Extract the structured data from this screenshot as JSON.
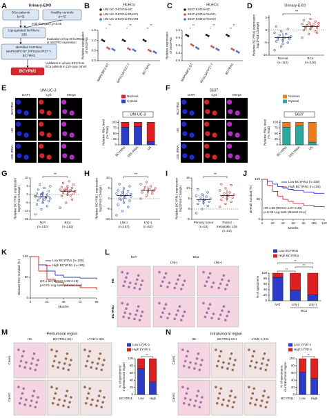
{
  "figure": {
    "A": {
      "letter": "A",
      "title": "Urinary-EXO",
      "boxes": [
        [
          "BCa patients",
          "(n=5)"
        ],
        [
          "Healthy controls",
          "(n=5)"
        ],
        [
          "Upregulated lncRNAs:",
          "255"
        ],
        [
          "Identified lncRNAs:",
          "MAPK8IP2-DT, RPS15A7P27-7,",
          "BCYRN1"
        ],
        [
          "BCYRN1"
        ]
      ],
      "notes": [
        [
          "Fold change≥2, p<0.05"
        ],
        [
          "Evaluation of top 20 lncRNAs",
          "in VEGFR3 expression"
        ],
        [
          "Validation in urinary-EXO from",
          "BCa patients in 210-case cohort"
        ]
      ]
    },
    "E_images": {
      "title": "UM-UC-3",
      "columns": [
        "DAPI",
        "Cy3",
        "Merge"
      ],
      "rows": [
        "BCYRN1",
        "U6",
        "18S rRNA"
      ]
    },
    "F_images": {
      "title": "5637",
      "columns": [
        "DAPI",
        "Cy3",
        "Merge"
      ],
      "rows": [
        "BCYRN1",
        "U6",
        "18S rRNA"
      ]
    },
    "L_images": {
      "columns": [
        "NAT",
        "BCa"
      ],
      "subcolumns": [
        "LN(-)",
        "LN(+)"
      ],
      "rows": [
        "HE",
        "BCYRN1"
      ]
    },
    "M_images": {
      "title": "Peritumoral region",
      "columns": [
        "HE",
        "BCYRN1-ISH",
        "LYVE-1-IHC"
      ],
      "rows": [
        "Case1",
        "Case2"
      ]
    },
    "N_images": {
      "title": "Intratumoral region",
      "columns": [
        "HE",
        "BCYRN1-ISH",
        "LYVE-1-IHC"
      ],
      "rows": [
        "Case1",
        "Case2"
      ]
    }
  },
  "chart_data": [
    {
      "letter": "B",
      "type": "dot-plot",
      "title": "HLECs",
      "y_label": [
        "Relative expression",
        "of VEGFR3"
      ],
      "categories": [
        "MAPK8IP2-DT",
        "RPS15A7P27-7",
        "BCYRN1"
      ],
      "series": [
        {
          "name": "UM-UC-3-EXOsi-NC",
          "color": "#222222",
          "values": [
            1.0,
            1.0,
            1.0
          ]
        },
        {
          "name": "UM-UC-3-EXOsi-RNA#1",
          "color": "#d9534f",
          "values": [
            0.62,
            0.58,
            0.5
          ]
        },
        {
          "name": "UM-UC-3-EXOsi-RNA#2",
          "color": "#4a6fd0",
          "values": [
            0.55,
            0.52,
            0.42
          ]
        }
      ],
      "ylim": [
        0,
        1.5
      ],
      "yticks": [
        {
          "value": 0,
          "label": "0.0"
        },
        0.5,
        {
          "value": 1,
          "label": "1.0"
        },
        1.5
      ],
      "annotations": [
        "*",
        "**",
        "*",
        "**",
        "**",
        "**"
      ]
    },
    {
      "letter": "C",
      "type": "dot-plot",
      "title": "HLECs",
      "y_label": [
        "Relative expression",
        "of VEGFR3"
      ],
      "categories": [
        "MAPK8IP2-DT",
        "RPS15A7P27-7",
        "BCYRN1"
      ],
      "series": [
        {
          "name": "5637-EXOsi-NC",
          "color": "#222222",
          "values": [
            1.0,
            1.0,
            1.0
          ]
        },
        {
          "name": "5637-EXOsi-RNA#1",
          "color": "#d9534f",
          "values": [
            0.62,
            0.55,
            0.45
          ]
        },
        {
          "name": "5637-EXOsi-RNA#2",
          "color": "#4a6fd0",
          "values": [
            0.5,
            0.45,
            0.35
          ]
        }
      ],
      "ylim": [
        0,
        1.2
      ],
      "yticks": [
        {
          "value": 0,
          "label": "0.0"
        },
        0.3,
        0.6,
        0.9,
        1.2
      ],
      "annotations": [
        "*",
        "**",
        "*",
        "**",
        "**",
        "**"
      ]
    },
    {
      "letter": "D",
      "type": "strip",
      "title": "Urinary-EXO",
      "y_label": [
        "Relative BCYRN1 expression",
        "log2(Fold Change)"
      ],
      "categories": [
        [
          "Normal"
        ],
        [
          "BCa"
        ]
      ],
      "counts": [
        "(n=112)",
        "(n=210)"
      ],
      "groups": [
        {
          "color": "#3b5bc4",
          "points": [
            -8,
            -6.5,
            -5,
            -4.5,
            -4,
            -3.5,
            -3,
            -3,
            -2.5,
            -2,
            -1.5,
            -1,
            -0.5,
            0.5,
            1.5,
            -5.5,
            -2.8,
            -3.8
          ],
          "mean": -3,
          "sd": 2
        },
        {
          "color": "#d23a2f",
          "points": [
            -3,
            -1.5,
            -0.5,
            0,
            0.5,
            1,
            1.2,
            1.5,
            1.8,
            2,
            2.2,
            2.5,
            3,
            3.5,
            4,
            4.5,
            -1,
            0.8,
            1.6,
            2.8
          ],
          "mean": 1.5,
          "sd": 1.6
        }
      ],
      "ylim": [
        -10,
        6
      ],
      "yticks": [
        -10,
        -5,
        0,
        5
      ],
      "annotations": [
        "**"
      ]
    },
    {
      "letter": "E",
      "type": "stacked-bar",
      "title": "UM-UC-3",
      "y_label": [
        "Relative RNA level",
        "(% Total)"
      ],
      "categories": [
        "BCYRN1",
        "18S rRNA",
        "U6"
      ],
      "series": [
        {
          "name": "Nucleus",
          "color": "#e02020",
          "values": [
            22,
            18,
            85
          ]
        },
        {
          "name": "Cytosol",
          "color": "#2a3cc8",
          "values": [
            78,
            82,
            15
          ]
        }
      ],
      "ylim": [
        0,
        110
      ],
      "yticks": [
        0,
        25,
        50,
        75,
        100
      ]
    },
    {
      "letter": "F",
      "type": "stacked-bar",
      "title": "5637",
      "y_label": [
        "Relative RNA level",
        "(% Total)"
      ],
      "categories": [
        "BCYRN1",
        "18S rRNA",
        "U6"
      ],
      "series": [
        {
          "name": "Nucleus",
          "color": "#f07a1a",
          "values": [
            22,
            15,
            88
          ]
        },
        {
          "name": "Cytosol",
          "color": "#2aa9a0",
          "values": [
            78,
            85,
            12
          ]
        }
      ],
      "ylim": [
        0,
        110
      ],
      "yticks": [
        0,
        25,
        50,
        75,
        100
      ]
    },
    {
      "letter": "G",
      "type": "strip",
      "y_label": [
        "Relative BCYRN1 expression",
        "log2(Fold Change)"
      ],
      "categories": [
        [
          "NAT"
        ],
        [
          "BCa"
        ]
      ],
      "counts": [
        "(n=210)",
        "(n=210)"
      ],
      "groups": [
        {
          "color": "#3b5bc4",
          "points": [
            -12,
            -9,
            -7,
            -6,
            -5,
            -4,
            -3.5,
            -3,
            -2.5,
            -2,
            -1.5,
            -1,
            -0.5,
            0,
            0.5,
            1,
            2,
            3,
            4,
            5,
            6,
            -2.2,
            -1.2,
            0.2
          ],
          "mean": -1.5,
          "sd": 3.5
        },
        {
          "color": "#d23a2f",
          "points": [
            -8,
            -5,
            -3,
            -1,
            0,
            0.5,
            1,
            1.5,
            2,
            2.3,
            2.6,
            3,
            3.5,
            4,
            4.5,
            5,
            6,
            7,
            8,
            1.8,
            2.8,
            -0.5
          ],
          "mean": 2,
          "sd": 2.8
        }
      ],
      "ylim": [
        -15,
        10
      ],
      "yticks": [
        -15,
        -10,
        -5,
        0,
        5,
        10
      ],
      "annotations": [
        "**"
      ]
    },
    {
      "letter": "H",
      "type": "strip",
      "y_label": [
        "Relative BCYRN1 expression",
        "log2(Fold Change)"
      ],
      "categories": [
        [
          "LN(-)"
        ],
        [
          "LN(+)"
        ]
      ],
      "counts": [
        "(n=157)",
        "(n=53)"
      ],
      "groups": [
        {
          "color": "#3b5bc4",
          "points": [
            -8,
            -6,
            -4,
            -3,
            -2,
            -1,
            0,
            0.5,
            1,
            1.5,
            2,
            2.5,
            3,
            3.5,
            4,
            5,
            6,
            7,
            1.2,
            2.2,
            -0.5
          ],
          "mean": 1.5,
          "sd": 3
        },
        {
          "color": "#d23a2f",
          "points": [
            0,
            1.5,
            2.5,
            3,
            3.5,
            4,
            4.3,
            4.6,
            5,
            5.5,
            6,
            7,
            8,
            3.8
          ],
          "mean": 4,
          "sd": 1.8
        }
      ],
      "ylim": [
        -10,
        10
      ],
      "yticks": [
        -10,
        -5,
        0,
        5,
        10
      ],
      "annotations": [
        "**"
      ]
    },
    {
      "letter": "I",
      "type": "strip",
      "y_label": [
        "Relative BCYRN1 expression",
        "log2(Fold Change)"
      ],
      "categories": [
        [
          "Primary tumor"
        ],
        [
          "Paired",
          "metastatic LNs"
        ]
      ],
      "counts": [
        "(n=53)",
        "(n=53)"
      ],
      "groups": [
        {
          "color": "#3b5bc4",
          "points": [
            -2,
            0,
            1.5,
            2.5,
            3,
            3.5,
            4,
            4.5,
            5,
            5.5,
            6,
            6.5,
            7,
            8,
            9.5,
            4.2
          ],
          "mean": 4.5,
          "sd": 2.6
        },
        {
          "color": "#d23a2f",
          "points": [
            1,
            2.5,
            3.5,
            4.5,
            5,
            5.5,
            6,
            6.5,
            7,
            7.5,
            8,
            9,
            10,
            11.5,
            12,
            6.2
          ],
          "mean": 6.5,
          "sd": 2.7
        }
      ],
      "ylim": [
        -5,
        15
      ],
      "yticks": [
        -5,
        0,
        5,
        10,
        15
      ],
      "annotations": [
        "**"
      ]
    },
    {
      "letter": "J",
      "type": "survival",
      "y_label": [
        "Overall Survival (%)"
      ],
      "x_label": "Months",
      "series": [
        {
          "name": "Low BCYRN1 (n=105)",
          "color": "#2a3cc8",
          "x": [
            0,
            10,
            20,
            30,
            40,
            50,
            60,
            80,
            100,
            120
          ],
          "values": [
            100,
            95,
            88,
            82,
            78,
            75,
            72,
            68,
            65,
            65
          ]
        },
        {
          "name": "High BCYRN1 (n=105)",
          "color": "#d9262a",
          "x": [
            0,
            10,
            20,
            30,
            40,
            50,
            60,
            80,
            100,
            120
          ],
          "values": [
            100,
            85,
            70,
            58,
            50,
            45,
            40,
            35,
            32,
            30
          ]
        }
      ],
      "stats": [
        "HR 1.58 (95%CI,1.07-2.33)",
        "p=0.05 Log-rank (Mantel-Cox)"
      ],
      "xlim": [
        0,
        120
      ],
      "xticks": [
        0,
        20,
        40,
        60,
        80,
        100,
        120
      ],
      "ylim": [
        0,
        100
      ],
      "yticks": [
        0,
        50,
        100
      ]
    },
    {
      "letter": "K",
      "type": "survival",
      "y_label": [
        "Disease-free Survival (%)"
      ],
      "x_label": "Months",
      "series": [
        {
          "name": "Low BCYRN1 (n=105)",
          "color": "#2a3cc8",
          "x": [
            0,
            12,
            24,
            36,
            48,
            72,
            96
          ],
          "values": [
            100,
            80,
            65,
            55,
            50,
            48,
            45
          ]
        },
        {
          "name": "High BCYRN1 (n=105)",
          "color": "#d9262a",
          "x": [
            0,
            12,
            24,
            36,
            48,
            72,
            96
          ],
          "values": [
            100,
            65,
            45,
            38,
            30,
            25,
            20
          ]
        }
      ],
      "stats": [
        "HR,1.52 (95%CI,1.06-2.18)",
        "p<0.01 Log-rank (Mantel-Cox)"
      ],
      "xlim": [
        0,
        96
      ],
      "xticks": [
        0,
        24,
        48,
        72,
        96
      ],
      "ylim": [
        0,
        100
      ],
      "yticks": [
        0,
        50,
        100
      ]
    },
    {
      "letter": "L",
      "type": "stacked-bar",
      "y_label": [
        "% of specimens"
      ],
      "categories": [
        "NAT",
        "LN(-)",
        "LN(+)"
      ],
      "group_label": "BCa",
      "series": [
        {
          "name": "Low BCYRN1",
          "color": "#2a3cc8",
          "values": [
            85,
            38,
            22
          ]
        },
        {
          "name": "High BCYRN1",
          "color": "#e02020",
          "values": [
            15,
            62,
            78
          ]
        }
      ],
      "ylim": [
        0,
        100
      ],
      "yticks": [
        0,
        20,
        40,
        60,
        80,
        100
      ],
      "annotations": [
        "**",
        "**",
        "**"
      ]
    },
    {
      "letter": "M",
      "type": "stacked-bar",
      "y_label": [
        "% of specimens",
        "in peritumoral region"
      ],
      "categories": [
        "Low",
        "High"
      ],
      "group_label": "BCYRN1:",
      "series": [
        {
          "name": "Low LYVE-1",
          "color": "#2a3cc8",
          "values": [
            72,
            35
          ]
        },
        {
          "name": "High LYVE-1",
          "color": "#e02020",
          "values": [
            28,
            65
          ]
        }
      ],
      "ylim": [
        0,
        100
      ],
      "yticks": [
        0,
        20,
        40,
        60,
        80,
        100
      ],
      "annotations": [
        "**"
      ]
    },
    {
      "letter": "N",
      "type": "stacked-bar",
      "y_label": [
        "% of specimens",
        "in intratumoral region"
      ],
      "categories": [
        "Low",
        "High"
      ],
      "group_label": "BCYRN1:",
      "series": [
        {
          "name": "Low LYVE-1",
          "color": "#2a3cc8",
          "values": [
            62,
            45
          ]
        },
        {
          "name": "High LYVE-1",
          "color": "#e02020",
          "values": [
            38,
            55
          ]
        }
      ],
      "ylim": [
        0,
        100
      ],
      "yticks": [
        0,
        20,
        40,
        60,
        80,
        100
      ],
      "annotations": [
        "**"
      ]
    }
  ]
}
